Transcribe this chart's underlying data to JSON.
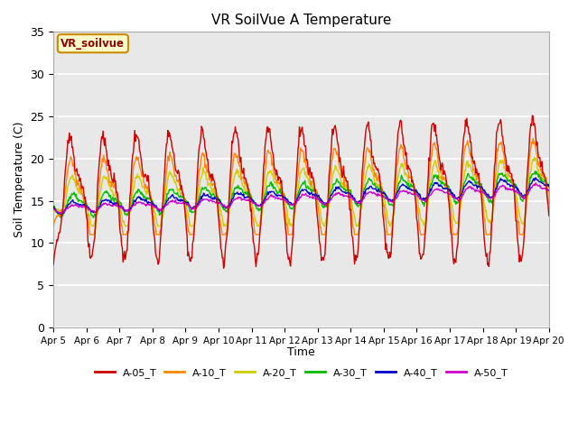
{
  "title": "VR SoilVue A Temperature",
  "ylabel": "Soil Temperature (C)",
  "xlabel": "Time",
  "annotation": "VR_soilvue",
  "ylim": [
    0,
    35
  ],
  "yticks": [
    0,
    5,
    10,
    15,
    20,
    25,
    30,
    35
  ],
  "series_colors": {
    "A-05_T": "#cc0000",
    "A-10_T": "#ff8800",
    "A-20_T": "#cccc00",
    "A-30_T": "#00bb00",
    "A-40_T": "#0000cc",
    "A-50_T": "#cc00cc"
  },
  "bg_color": "#e8e8e8",
  "grid_color": "#ffffff",
  "num_days": 15,
  "points_per_day": 48,
  "start_day": 5,
  "figsize": [
    6.4,
    4.8
  ],
  "dpi": 100
}
